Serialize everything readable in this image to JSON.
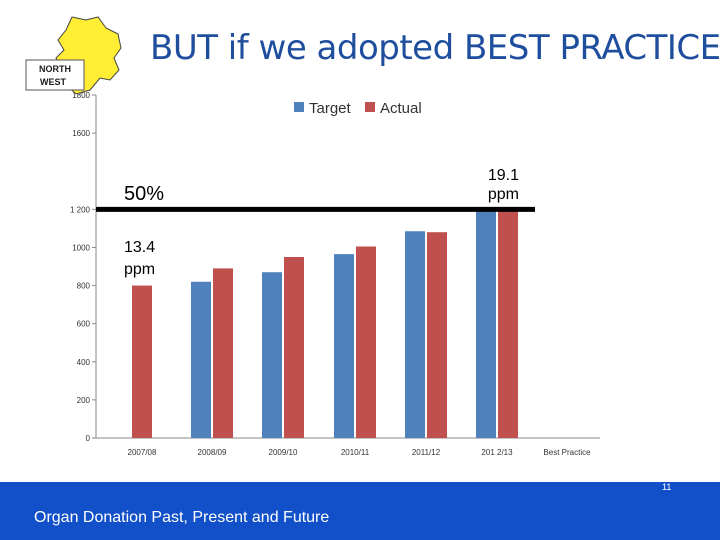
{
  "slide": {
    "title": "BUT if we adopted BEST PRACTICE",
    "logo_text": "NORTH WEST",
    "footer_text": "Organ Donation Past, Present and Future",
    "page_number": "11"
  },
  "colors": {
    "target": "#4f81bd",
    "actual": "#c0504d",
    "title": "#1f4e9e",
    "footer": "#1150c8",
    "logo_fill": "#ffee33"
  },
  "chart_data": {
    "type": "bar",
    "title": "",
    "xlabel": "",
    "ylabel": "",
    "ylim": [
      0,
      1800
    ],
    "yticks": [
      0,
      200,
      400,
      600,
      800,
      1000,
      1200,
      1600,
      1800
    ],
    "ytick_labels": [
      "0",
      "200",
      "400",
      "600",
      "800",
      "1000",
      "1 200",
      "1600",
      "1800"
    ],
    "categories": [
      "2007/08",
      "2008/09",
      "2009/10",
      "2010/11",
      "2011/12",
      "201 2/13",
      "Best Practice"
    ],
    "legend": {
      "position": "top-center",
      "entries": [
        "Target",
        "Actual"
      ]
    },
    "series": [
      {
        "name": "Target",
        "values": [
          null,
          820,
          870,
          965,
          1085,
          1200,
          null
        ]
      },
      {
        "name": "Actual",
        "values": [
          800,
          890,
          950,
          1005,
          1080,
          1200,
          null
        ]
      }
    ],
    "annotations": {
      "best_practice_level": 1200,
      "best_practice_pct": "50%",
      "rate_low": "13.4 ppm",
      "rate_high": "19.1 ppm"
    }
  }
}
